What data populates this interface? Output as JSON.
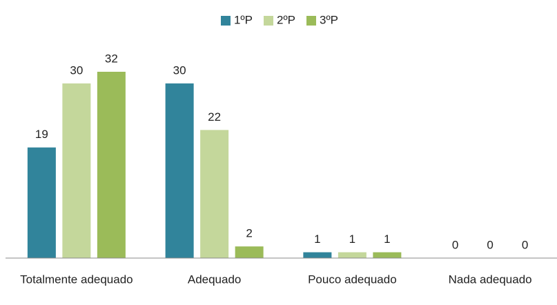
{
  "chart_data": {
    "type": "bar",
    "categories": [
      "Totalmente adequado",
      "Adequado",
      "Pouco adequado",
      "Nada adequado"
    ],
    "series": [
      {
        "name": "1ºP",
        "color": "#31849b",
        "values": [
          19,
          30,
          1,
          0
        ]
      },
      {
        "name": "2ºP",
        "color": "#c4d79b",
        "values": [
          30,
          22,
          1,
          0
        ]
      },
      {
        "name": "3ºP",
        "color": "#9bbb59",
        "values": [
          32,
          2,
          1,
          0
        ]
      }
    ],
    "legend": "top"
  }
}
